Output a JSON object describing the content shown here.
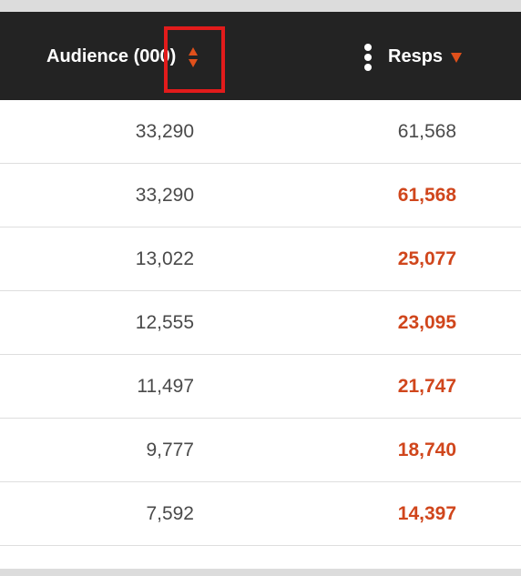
{
  "header": {
    "audience_label": "Audience (000)",
    "audience_sort_icon": "sort-both-icon",
    "menu_icon": "kebab-menu-icon",
    "resps_label": "Resps",
    "resps_sort_icon": "sort-descending-icon"
  },
  "rows": [
    {
      "audience": "33,290",
      "resps": "61,568",
      "resps_style": "plain"
    },
    {
      "audience": "33,290",
      "resps": "61,568",
      "resps_style": "emphasized"
    },
    {
      "audience": "13,022",
      "resps": "25,077",
      "resps_style": "emphasized"
    },
    {
      "audience": "12,555",
      "resps": "23,095",
      "resps_style": "emphasized"
    },
    {
      "audience": "11,497",
      "resps": "21,747",
      "resps_style": "emphasized"
    },
    {
      "audience": "9,777",
      "resps": "18,740",
      "resps_style": "emphasized"
    },
    {
      "audience": "7,592",
      "resps": "14,397",
      "resps_style": "emphasized"
    }
  ],
  "colors": {
    "header_bg": "#232323",
    "accent": "#e0501b",
    "emphasis_text": "#d0461c",
    "highlight_box": "#e21b1b",
    "body_text": "#4a4a4a"
  }
}
